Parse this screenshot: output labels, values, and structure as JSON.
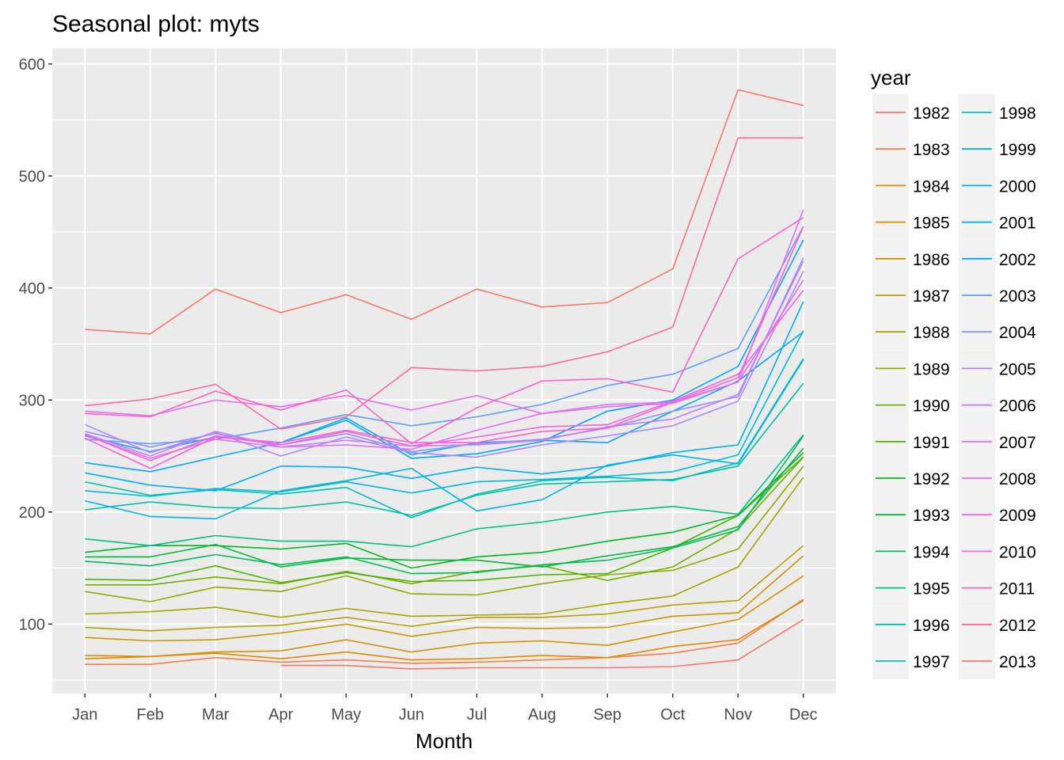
{
  "chart_data": {
    "type": "line",
    "title": "Seasonal plot: myts",
    "xlabel": "Month",
    "ylabel": "",
    "categories": [
      "Jan",
      "Feb",
      "Mar",
      "Apr",
      "May",
      "Jun",
      "Jul",
      "Aug",
      "Sep",
      "Oct",
      "Nov",
      "Dec"
    ],
    "ylim": [
      38,
      614
    ],
    "yticks": [
      100,
      200,
      300,
      400,
      500,
      600
    ],
    "grid": true,
    "legend": {
      "title": "year",
      "position": "right",
      "columns": 2
    },
    "series": [
      {
        "name": "1982",
        "color": "#F8766D",
        "values": [
          null,
          null,
          null,
          63,
          63,
          60,
          61,
          61,
          61,
          62,
          68,
          104
        ]
      },
      {
        "name": "1983",
        "color": "#F07E4D",
        "values": [
          64,
          64,
          70,
          66,
          68,
          65,
          66,
          68,
          70,
          74,
          83,
          122
        ]
      },
      {
        "name": "1984",
        "color": "#E58700",
        "values": [
          69,
          71,
          74,
          69,
          75,
          68,
          69,
          72,
          70,
          80,
          86,
          121
        ]
      },
      {
        "name": "1985",
        "color": "#D89000",
        "values": [
          72,
          71,
          75,
          76,
          86,
          75,
          83,
          85,
          81,
          93,
          104,
          143
        ]
      },
      {
        "name": "1986",
        "color": "#C99800",
        "values": [
          88,
          85,
          86,
          92,
          100,
          89,
          97,
          96,
          97,
          107,
          110,
          161
        ]
      },
      {
        "name": "1987",
        "color": "#B79F00",
        "values": [
          97,
          94,
          97,
          99,
          106,
          98,
          106,
          106,
          109,
          117,
          121,
          170
        ]
      },
      {
        "name": "1988",
        "color": "#A3A500",
        "values": [
          109,
          111,
          115,
          106,
          114,
          107,
          108,
          109,
          118,
          125,
          151,
          231
        ]
      },
      {
        "name": "1989",
        "color": "#8EAB00",
        "values": [
          129,
          120,
          133,
          129,
          143,
          127,
          126,
          136,
          144,
          148,
          167,
          241
        ]
      },
      {
        "name": "1990",
        "color": "#72B000",
        "values": [
          135,
          135,
          142,
          136,
          147,
          136,
          147,
          152,
          139,
          151,
          185,
          249
        ]
      },
      {
        "name": "1991",
        "color": "#4FB400",
        "values": [
          140,
          139,
          152,
          137,
          146,
          138,
          139,
          144,
          145,
          168,
          197,
          249
        ]
      },
      {
        "name": "1992",
        "color": "#00B81F",
        "values": [
          164,
          170,
          170,
          167,
          172,
          150,
          160,
          164,
          174,
          182,
          197,
          253
        ]
      },
      {
        "name": "1993",
        "color": "#00BA38",
        "values": [
          160,
          160,
          171,
          151,
          159,
          157,
          157,
          151,
          161,
          169,
          187,
          257
        ]
      },
      {
        "name": "1994",
        "color": "#00BD5C",
        "values": [
          156,
          152,
          162,
          153,
          160,
          145,
          146,
          153,
          157,
          168,
          184,
          268
        ]
      },
      {
        "name": "1995",
        "color": "#00C08B",
        "values": [
          176,
          170,
          179,
          174,
          174,
          169,
          185,
          191,
          200,
          205,
          198,
          269
        ]
      },
      {
        "name": "1996",
        "color": "#00C1A3",
        "values": [
          202,
          209,
          204,
          203,
          209,
          197,
          215,
          225,
          227,
          229,
          241,
          315
        ]
      },
      {
        "name": "1997",
        "color": "#00BFB9",
        "values": [
          227,
          215,
          220,
          216,
          222,
          195,
          216,
          228,
          231,
          228,
          244,
          337
        ]
      },
      {
        "name": "1998",
        "color": "#00BCD8",
        "values": [
          219,
          214,
          221,
          218,
          227,
          217,
          227,
          229,
          232,
          236,
          251,
          362
        ]
      },
      {
        "name": "1999",
        "color": "#00B5E4",
        "values": [
          210,
          196,
          194,
          219,
          228,
          239,
          201,
          211,
          242,
          251,
          243,
          336
        ]
      },
      {
        "name": "2000",
        "color": "#00B0F6",
        "values": [
          235,
          224,
          219,
          241,
          240,
          230,
          240,
          234,
          241,
          253,
          260,
          388
        ]
      },
      {
        "name": "2001",
        "color": "#00A9FF",
        "values": [
          244,
          236,
          249,
          262,
          284,
          251,
          262,
          264,
          262,
          290,
          317,
          361
        ]
      },
      {
        "name": "2002",
        "color": "#00A5FF",
        "values": [
          268,
          254,
          267,
          262,
          282,
          248,
          252,
          263,
          290,
          300,
          330,
          443
        ]
      },
      {
        "name": "2003",
        "color": "#619CFF",
        "values": [
          265,
          261,
          265,
          275,
          287,
          277,
          285,
          296,
          313,
          323,
          346,
          455
        ]
      },
      {
        "name": "2004",
        "color": "#8F92FF",
        "values": [
          272,
          258,
          270,
          260,
          270,
          254,
          261,
          265,
          275,
          290,
          303,
          427
        ]
      },
      {
        "name": "2005",
        "color": "#AC88FF",
        "values": [
          278,
          253,
          271,
          250,
          267,
          253,
          249,
          260,
          268,
          277,
          299,
          415
        ]
      },
      {
        "name": "2006",
        "color": "#C77CFF",
        "values": [
          270,
          250,
          272,
          258,
          264,
          259,
          260,
          264,
          276,
          283,
          305,
          424
        ]
      },
      {
        "name": "2007",
        "color": "#DB72FB",
        "values": [
          269,
          248,
          265,
          258,
          260,
          256,
          273,
          288,
          296,
          298,
          316,
          470
        ]
      },
      {
        "name": "2008",
        "color": "#E76BF3",
        "values": [
          290,
          286,
          300,
          294,
          304,
          291,
          304,
          288,
          294,
          297,
          316,
          407
        ]
      },
      {
        "name": "2009",
        "color": "#F464E1",
        "values": [
          269,
          246,
          268,
          260,
          272,
          259,
          267,
          276,
          278,
          299,
          323,
          398
        ]
      },
      {
        "name": "2010",
        "color": "#FC61D5",
        "values": [
          266,
          239,
          267,
          262,
          273,
          262,
          262,
          272,
          275,
          298,
          320,
          455
        ]
      },
      {
        "name": "2011",
        "color": "#FF61C3",
        "values": [
          288,
          285,
          308,
          291,
          309,
          261,
          293,
          317,
          319,
          307,
          426,
          463
        ]
      },
      {
        "name": "2012",
        "color": "#FF67A4",
        "values": [
          295,
          301,
          314,
          274,
          285,
          329,
          326,
          330,
          343,
          365,
          534,
          534
        ]
      },
      {
        "name": "2013",
        "color": "#F8766D",
        "values": [
          363,
          359,
          399,
          378,
          394,
          372,
          399,
          383,
          387,
          417,
          577,
          563
        ]
      }
    ]
  }
}
